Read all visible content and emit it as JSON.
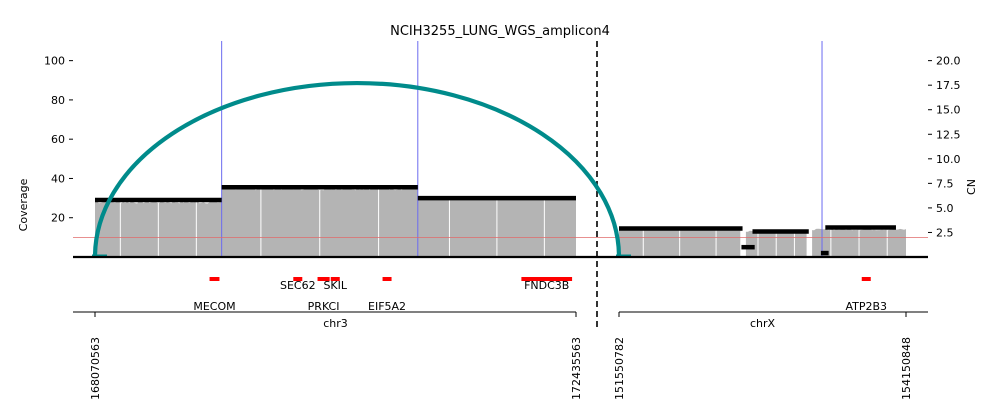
{
  "chart_data": {
    "type": "area",
    "title": "NCIH3255_LUNG_WGS_amplicon4",
    "ylabel_left": "Coverage",
    "ylabel_right": "CN",
    "left_axis": {
      "ylim": [
        0,
        110
      ],
      "ticks": [
        20,
        40,
        60,
        80,
        100
      ],
      "tick_labels": [
        "20",
        "40",
        "60",
        "80",
        "100"
      ]
    },
    "right_axis": {
      "ylim": [
        0,
        22
      ],
      "ticks": [
        2.5,
        5.0,
        7.5,
        10.0,
        12.5,
        15.0,
        17.5,
        20.0
      ],
      "tick_labels": [
        "2.5",
        "5.0",
        "7.5",
        "10.0",
        "12.5",
        "15.0",
        "17.5",
        "20.0"
      ]
    },
    "x_segments": [
      {
        "chrom": "chr3",
        "start": 168070563,
        "end": 172435563,
        "start_label": "168070563",
        "end_label": "172435563"
      },
      {
        "chrom": "chrX",
        "start": 151550782,
        "end": 154150848,
        "start_label": "151550782",
        "end_label": "154150848"
      }
    ],
    "coverage_regions": [
      {
        "chrom": "chr3",
        "start": 168070563,
        "end": 169220000,
        "coverage": 28
      },
      {
        "chrom": "chr3",
        "start": 169220000,
        "end": 171000000,
        "coverage": 35
      },
      {
        "chrom": "chr3",
        "start": 171000000,
        "end": 172435563,
        "coverage": 30
      },
      {
        "chrom": "chrX",
        "start": 151550782,
        "end": 152650000,
        "coverage": 14
      },
      {
        "chrom": "chrX",
        "start": 152700000,
        "end": 153250000,
        "coverage": 13
      },
      {
        "chrom": "chrX",
        "start": 153300000,
        "end": 154150848,
        "coverage": 14
      }
    ],
    "cn_segments": [
      {
        "chrom": "chr3",
        "start": 168070563,
        "end": 169220000,
        "cn": 5.8
      },
      {
        "chrom": "chr3",
        "start": 169220000,
        "end": 171000000,
        "cn": 7.1
      },
      {
        "chrom": "chr3",
        "start": 171000000,
        "end": 172435563,
        "cn": 6.0
      },
      {
        "chrom": "chrX",
        "start": 151550782,
        "end": 152670000,
        "cn": 2.9
      },
      {
        "chrom": "chrX",
        "start": 152660000,
        "end": 152780000,
        "cn": 1.0
      },
      {
        "chrom": "chrX",
        "start": 152760000,
        "end": 153270000,
        "cn": 2.6
      },
      {
        "chrom": "chrX",
        "start": 153380000,
        "end": 153450000,
        "cn": 0.4
      },
      {
        "chrom": "chrX",
        "start": 153420000,
        "end": 154060000,
        "cn": 3.0
      }
    ],
    "breakpoint_lines": [
      {
        "chrom": "chr3",
        "pos": 169220000
      },
      {
        "chrom": "chr3",
        "pos": 171000000
      },
      {
        "chrom": "chrX",
        "pos": 153390000
      }
    ],
    "cn_threshold": 2.0,
    "discordant_edges": [
      {
        "from": {
          "chrom": "chr3",
          "pos": 168070563
        },
        "to": {
          "chrom": "chrX",
          "pos": 151550782
        },
        "color": "#008b8b"
      }
    ],
    "genes": [
      {
        "name": "MECOM",
        "chrom": "chr3",
        "start": 169110000,
        "end": 169200000,
        "label_row": 2
      },
      {
        "name": "SEC62",
        "chrom": "chr3",
        "start": 169870000,
        "end": 169930000,
        "label_row": 1
      },
      {
        "name": "PRKCI",
        "chrom": "chr3",
        "start": 170090000,
        "end": 170200000,
        "label_row": 2
      },
      {
        "name": "SKIL",
        "chrom": "chr3",
        "start": 170210000,
        "end": 170290000,
        "label_row": 1
      },
      {
        "name": "EIF5A2",
        "chrom": "chr3",
        "start": 170680000,
        "end": 170740000,
        "label_row": 2
      },
      {
        "name": "FNDC3B",
        "chrom": "chr3",
        "start": 171940000,
        "end": 172400000,
        "label_row": 1
      },
      {
        "name": "ATP2B3",
        "chrom": "chrX",
        "start": 153750000,
        "end": 153820000,
        "label_row": 2
      }
    ],
    "colors": {
      "coverage_fill": "#b4b4b4",
      "cn_segment": "#000000",
      "arc": "#008b8b",
      "gene": "#ff0000",
      "breakpoint_line": "#6b6bf0",
      "threshold_line": "#e06b6b",
      "junction_line": "#000000"
    },
    "grid": false
  }
}
